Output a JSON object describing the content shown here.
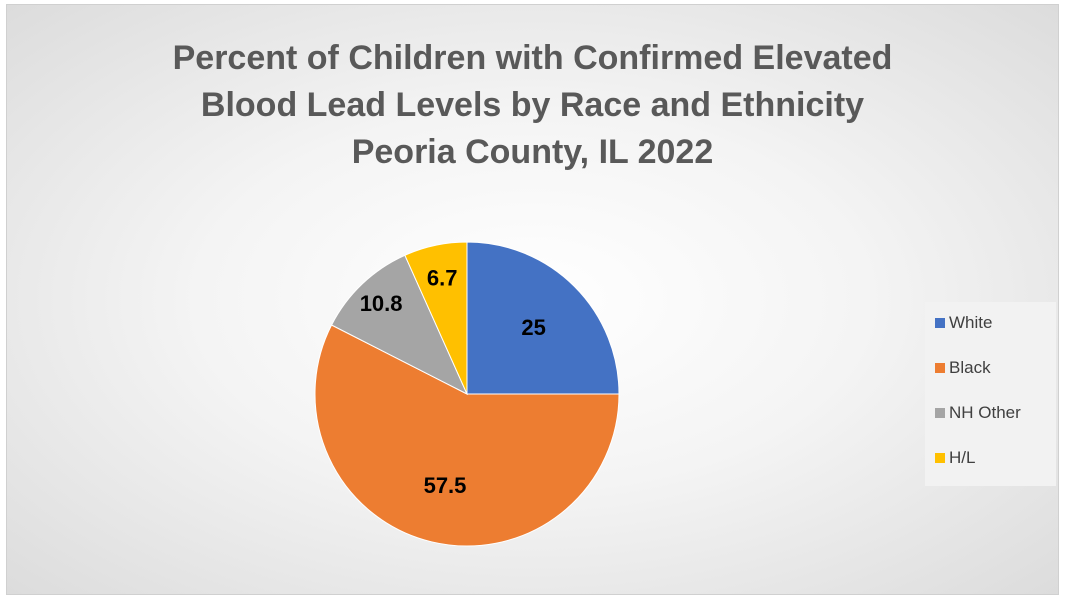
{
  "chart_data": {
    "type": "pie",
    "title_lines": [
      "Percent of Children with Confirmed Elevated",
      "Blood Lead Levels by Race and Ethnicity",
      "Peoria County, IL 2022"
    ],
    "categories": [
      "White",
      "Black",
      "NH Other",
      "H/L"
    ],
    "values": [
      25,
      57.5,
      10.8,
      6.7
    ],
    "data_labels": [
      "25",
      "57.5",
      "10.8",
      "6.7"
    ],
    "colors": [
      "#4472C4",
      "#ED7D31",
      "#A5A5A5",
      "#FFC000"
    ],
    "legend_position": "right",
    "start_angle": "12 o'clock",
    "direction": "clockwise"
  }
}
